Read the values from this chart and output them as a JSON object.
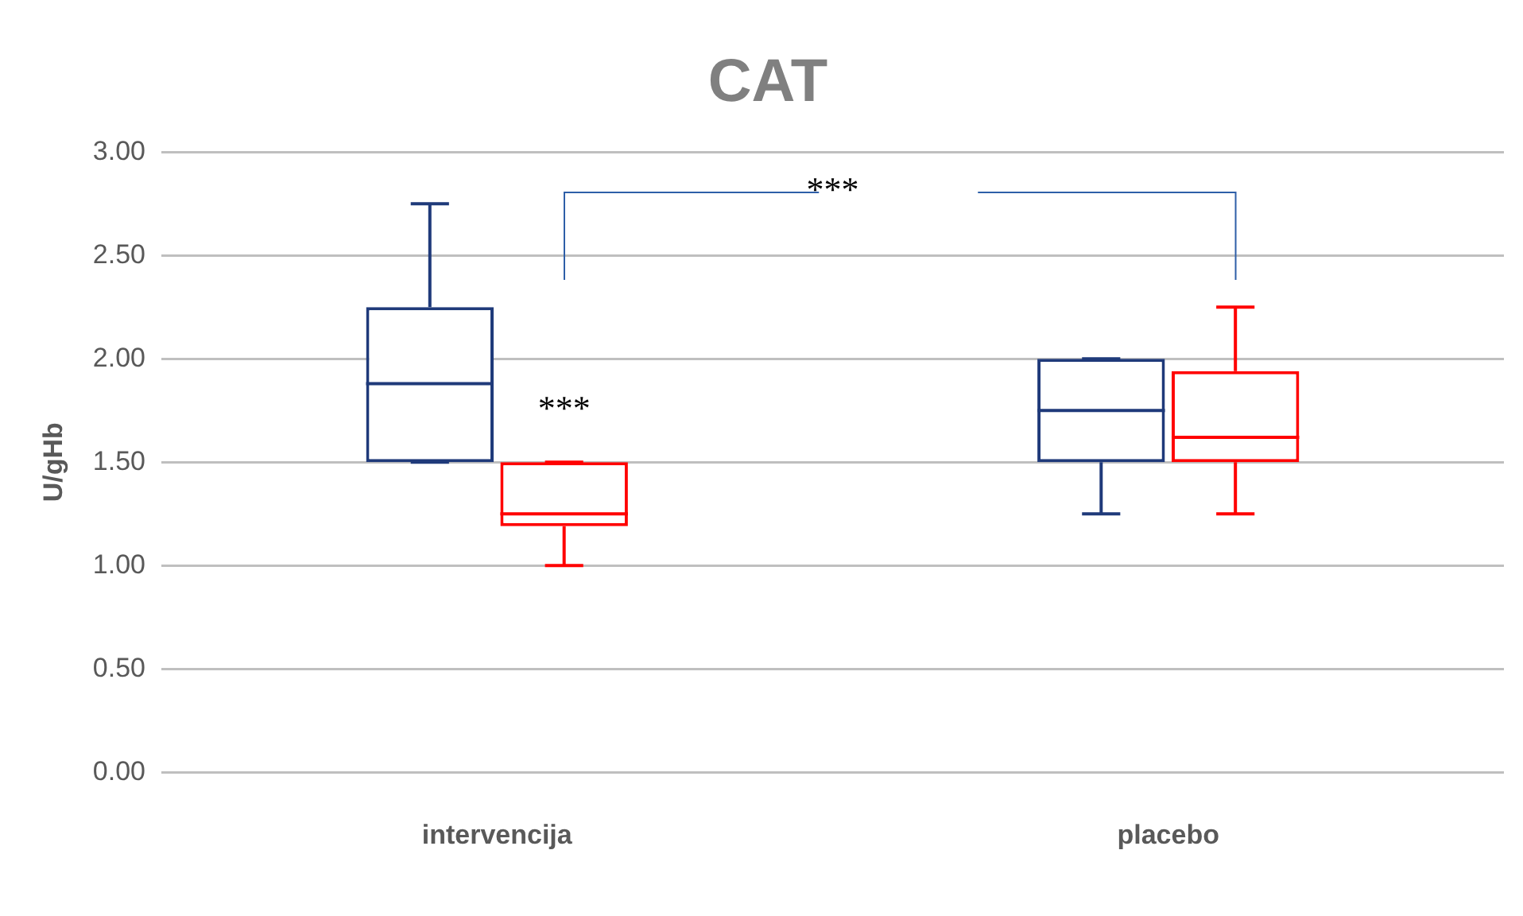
{
  "chart_data": {
    "type": "box",
    "title": "CAT",
    "ylabel": "U/gHb",
    "categories": [
      "intervencija",
      "placebo"
    ],
    "series": [
      {
        "color": "#1f3a7a",
        "boxes": [
          {
            "low": 1.5,
            "q1": 1.5,
            "median": 1.88,
            "q3": 2.25,
            "high": 2.75
          },
          {
            "low": 1.25,
            "q1": 1.5,
            "median": 1.75,
            "q3": 2.0,
            "high": 2.0
          }
        ]
      },
      {
        "color": "#ff0000",
        "boxes": [
          {
            "low": 1.0,
            "q1": 1.19,
            "median": 1.25,
            "q3": 1.5,
            "high": 1.5
          },
          {
            "low": 1.25,
            "q1": 1.5,
            "median": 1.62,
            "q3": 1.94,
            "high": 2.25
          }
        ]
      }
    ],
    "ylim": [
      0,
      3
    ],
    "yticks": [
      {
        "value": 0,
        "label": "0.00"
      },
      {
        "value": 0.5,
        "label": "0.50"
      },
      {
        "value": 1,
        "label": "1.00"
      },
      {
        "value": 1.5,
        "label": "1.50"
      },
      {
        "value": 2,
        "label": "2.00"
      },
      {
        "value": 2.5,
        "label": "2.50"
      },
      {
        "value": 3,
        "label": "3.00"
      }
    ],
    "grid": "y",
    "legend": false,
    "annotations": [
      "***",
      {
        "text": "***",
        "x": "intervencija",
        "y": 1.75
      }
    ]
  }
}
